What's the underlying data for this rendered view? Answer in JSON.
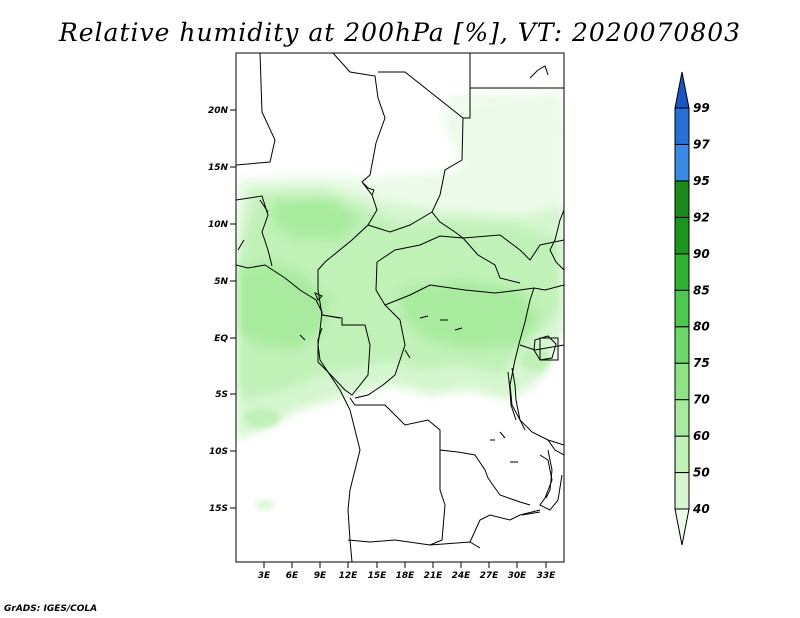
{
  "title": "Relative humidity at 200hPa [%], VT: 2020070803",
  "credit": "GrADS: IGES/COLA",
  "lat_labels": [
    "20N",
    "15N",
    "10N",
    "5N",
    "EQ",
    "5S",
    "10S",
    "15S"
  ],
  "lon_labels": [
    "3E",
    "6E",
    "9E",
    "12E",
    "15E",
    "18E",
    "21E",
    "24E",
    "27E",
    "30E",
    "33E"
  ],
  "colorbar": {
    "labels": [
      "40",
      "50",
      "60",
      "70",
      "75",
      "80",
      "85",
      "90",
      "92",
      "95",
      "97",
      "99"
    ],
    "colors": [
      "#ecfbe9",
      "#d6f6d0",
      "#c0f1b7",
      "#a8eb9e",
      "#8ee385",
      "#6fd86a",
      "#4cc94f",
      "#2fb133",
      "#1a961e",
      "#1c8a1c",
      "#3a8be6",
      "#2a6fd6",
      "#1c55c2"
    ]
  },
  "chart_data": {
    "type": "heatmap",
    "variable": "Relative humidity",
    "level": "200hPa",
    "units": "%",
    "valid_time": "2020070803",
    "lon_range": [
      0,
      35
    ],
    "lat_range": [
      -20,
      25
    ],
    "levels": [
      40,
      50,
      60,
      70,
      75,
      80,
      85,
      90,
      92,
      95,
      97,
      99
    ],
    "observed_range": [
      40,
      75
    ]
  }
}
